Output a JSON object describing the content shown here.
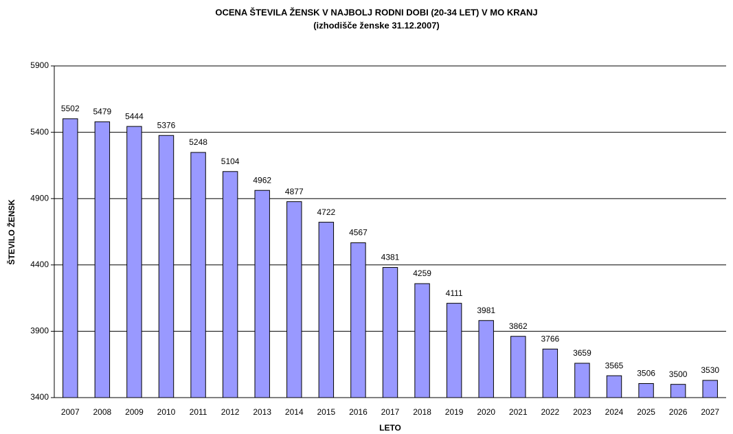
{
  "chart_data": {
    "type": "bar",
    "title": "OCENA ŠTEVILA ŽENSK V NAJBOLJ RODNI DOBI (20-34 LET) V MO KRANJ",
    "subtitle": "(izhodišče ženske 31.12.2007)",
    "x_label": "LETO",
    "y_label": "ŠTEVILO ŽENSK",
    "categories": [
      "2007",
      "2008",
      "2009",
      "2010",
      "2011",
      "2012",
      "2013",
      "2014",
      "2015",
      "2016",
      "2017",
      "2018",
      "2019",
      "2020",
      "2021",
      "2022",
      "2023",
      "2024",
      "2025",
      "2026",
      "2027"
    ],
    "values": [
      5502,
      5479,
      5444,
      5376,
      5248,
      5104,
      4962,
      4877,
      4722,
      4567,
      4381,
      4259,
      4111,
      3981,
      3862,
      3766,
      3659,
      3565,
      3506,
      3500,
      3530
    ],
    "color": "#9999ff",
    "ylim": [
      3400,
      5900
    ],
    "yticks": [
      3400,
      3900,
      4400,
      4900,
      5400,
      5900
    ],
    "grid": true
  }
}
